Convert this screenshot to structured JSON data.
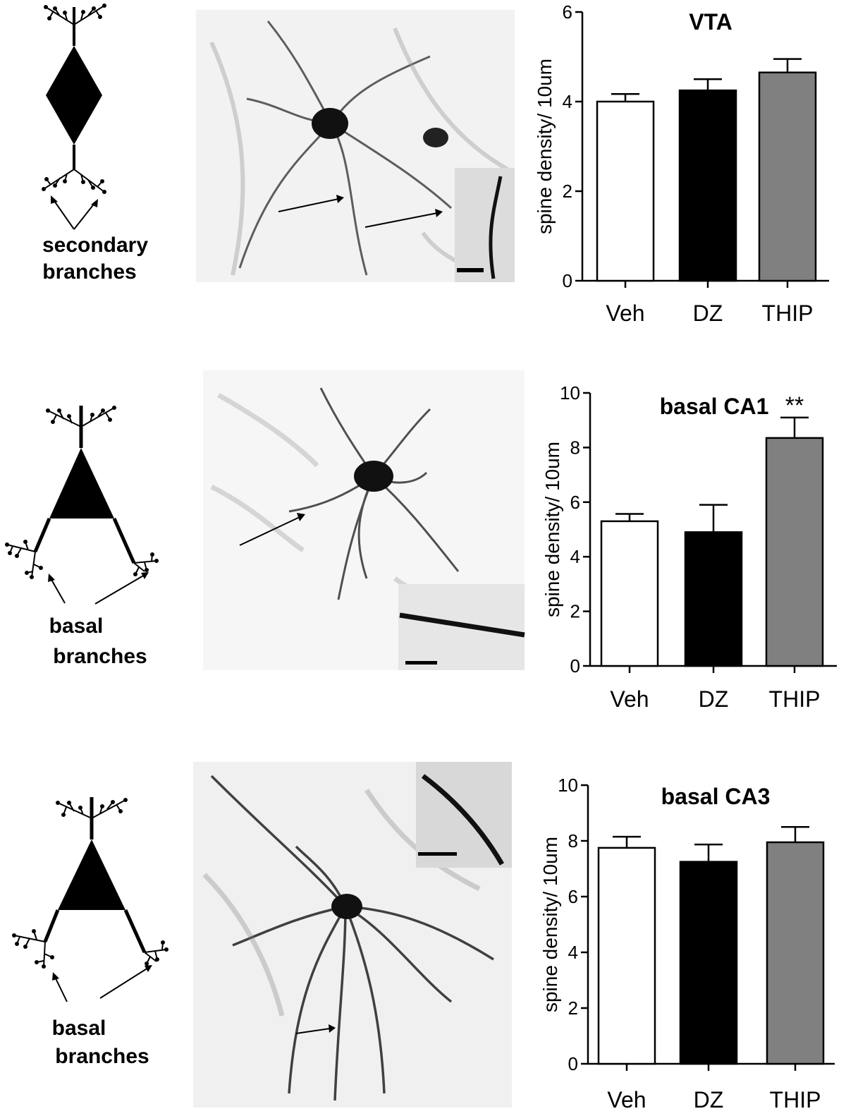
{
  "rows": [
    {
      "schematic": {
        "type": "diamond",
        "label_lines": [
          "secondary",
          "branches"
        ]
      },
      "chart_data": {
        "type": "bar",
        "title": "VTA",
        "ylabel": "spine density/ 10um",
        "categories": [
          "Veh",
          "DZ",
          "THIP"
        ],
        "values": [
          4.0,
          4.25,
          4.65
        ],
        "errors": [
          0.17,
          0.25,
          0.3
        ],
        "ylim": [
          0,
          6
        ],
        "yticks": [
          "0",
          "2",
          "4",
          "6"
        ],
        "bar_colors": [
          "#ffffff",
          "#000000",
          "#808080"
        ],
        "significance": [
          "",
          "",
          ""
        ],
        "grid": false
      }
    },
    {
      "schematic": {
        "type": "pyramid",
        "label_lines": [
          "basal",
          "branches"
        ]
      },
      "chart_data": {
        "type": "bar",
        "title": "basal CA1",
        "ylabel": "spine density/ 10um",
        "categories": [
          "Veh",
          "DZ",
          "THIP"
        ],
        "values": [
          5.3,
          4.9,
          8.35
        ],
        "errors": [
          0.27,
          1.0,
          0.75
        ],
        "ylim": [
          0,
          10
        ],
        "yticks": [
          "0",
          "2",
          "4",
          "6",
          "8",
          "10"
        ],
        "bar_colors": [
          "#ffffff",
          "#000000",
          "#808080"
        ],
        "significance": [
          "",
          "",
          "**"
        ],
        "grid": false
      }
    },
    {
      "schematic": {
        "type": "pyramid",
        "label_lines": [
          "basal",
          "branches"
        ]
      },
      "chart_data": {
        "type": "bar",
        "title": "basal CA3",
        "ylabel": "spine density/ 10um",
        "categories": [
          "Veh",
          "DZ",
          "THIP"
        ],
        "values": [
          7.75,
          7.25,
          7.95
        ],
        "errors": [
          0.4,
          0.62,
          0.55
        ],
        "ylim": [
          0,
          10
        ],
        "yticks": [
          "0",
          "2",
          "4",
          "6",
          "8",
          "10"
        ],
        "bar_colors": [
          "#ffffff",
          "#000000",
          "#808080"
        ],
        "significance": [
          "",
          "",
          ""
        ],
        "grid": false
      }
    }
  ]
}
